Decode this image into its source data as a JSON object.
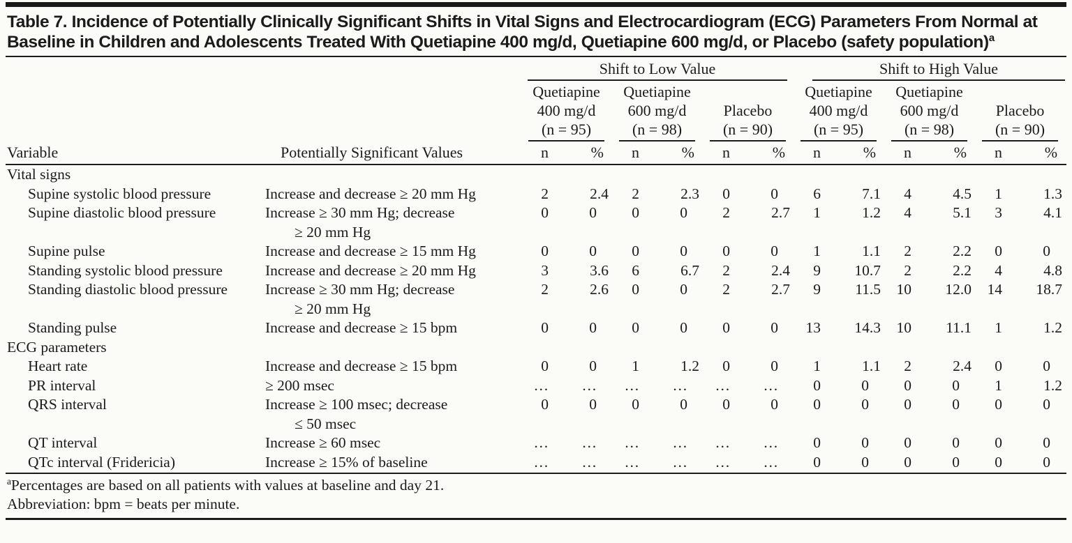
{
  "table": {
    "title": "Table 7. Incidence of Potentially Clinically Significant Shifts in Vital Signs and Electrocardiogram (ECG) Parameters From Normal at Baseline in Children and Adolescents Treated With Quetiapine 400 mg/d, Quetiapine 600 mg/d, or Placebo (safety population)",
    "title_sup": "a",
    "spanners": [
      "Shift to Low Value",
      "Shift to High Value"
    ],
    "groups": [
      {
        "lines": [
          "Quetiapine",
          "400 mg/d",
          "(n = 95)"
        ]
      },
      {
        "lines": [
          "Quetiapine",
          "600 mg/d",
          "(n = 98)"
        ]
      },
      {
        "lines": [
          "Placebo",
          "(n = 90)"
        ]
      },
      {
        "lines": [
          "Quetiapine",
          "400 mg/d",
          "(n = 95)"
        ]
      },
      {
        "lines": [
          "Quetiapine",
          "600 mg/d",
          "(n = 98)"
        ]
      },
      {
        "lines": [
          "Placebo",
          "(n = 90)"
        ]
      }
    ],
    "col_headers": {
      "variable": "Variable",
      "psv": "Potentially Significant Values",
      "n": "n",
      "pct": "%"
    },
    "rows": [
      {
        "type": "section",
        "label": "Vital signs"
      },
      {
        "type": "data",
        "variable": "Supine systolic blood pressure",
        "psv": "Increase and decrease ≥ 20 mm Hg",
        "psv2": "",
        "v": [
          "2",
          "2.4",
          "2",
          "2.3",
          "0",
          "0",
          "6",
          "7.1",
          "4",
          "4.5",
          "1",
          "1.3"
        ]
      },
      {
        "type": "data",
        "variable": "Supine diastolic blood pressure",
        "psv": "Increase ≥ 30 mm Hg; decrease",
        "psv2": "≥ 20 mm Hg",
        "v": [
          "0",
          "0",
          "0",
          "0",
          "2",
          "2.7",
          "1",
          "1.2",
          "4",
          "5.1",
          "3",
          "4.1"
        ]
      },
      {
        "type": "data",
        "variable": "Supine pulse",
        "psv": "Increase and decrease ≥ 15 mm Hg",
        "psv2": "",
        "v": [
          "0",
          "0",
          "0",
          "0",
          "0",
          "0",
          "1",
          "1.1",
          "2",
          "2.2",
          "0",
          "0"
        ]
      },
      {
        "type": "data",
        "variable": "Standing systolic blood pressure",
        "psv": "Increase and decrease ≥ 20 mm Hg",
        "psv2": "",
        "v": [
          "3",
          "3.6",
          "6",
          "6.7",
          "2",
          "2.4",
          "9",
          "10.7",
          "2",
          "2.2",
          "4",
          "4.8"
        ]
      },
      {
        "type": "data",
        "variable": "Standing diastolic blood pressure",
        "psv": "Increase ≥ 30 mm Hg; decrease",
        "psv2": "≥ 20 mm Hg",
        "v": [
          "2",
          "2.6",
          "0",
          "0",
          "2",
          "2.7",
          "9",
          "11.5",
          "10",
          "12.0",
          "14",
          "18.7"
        ]
      },
      {
        "type": "data",
        "variable": "Standing pulse",
        "psv": "Increase and decrease ≥ 15 bpm",
        "psv2": "",
        "v": [
          "0",
          "0",
          "0",
          "0",
          "0",
          "0",
          "13",
          "14.3",
          "10",
          "11.1",
          "1",
          "1.2"
        ]
      },
      {
        "type": "section",
        "label": "ECG parameters"
      },
      {
        "type": "data",
        "variable": "Heart rate",
        "psv": "Increase and decrease ≥ 15 bpm",
        "psv2": "",
        "v": [
          "0",
          "0",
          "1",
          "1.2",
          "0",
          "0",
          "1",
          "1.1",
          "2",
          "2.4",
          "0",
          "0"
        ]
      },
      {
        "type": "data",
        "variable": "PR interval",
        "psv": "≥ 200 msec",
        "psv2": "",
        "v": [
          "…",
          "…",
          "…",
          "…",
          "…",
          "…",
          "0",
          "0",
          "0",
          "0",
          "1",
          "1.2"
        ]
      },
      {
        "type": "data",
        "variable": "QRS interval",
        "psv": "Increase ≥ 100 msec; decrease",
        "psv2": "≤ 50 msec",
        "v": [
          "0",
          "0",
          "0",
          "0",
          "0",
          "0",
          "0",
          "0",
          "0",
          "0",
          "0",
          "0"
        ]
      },
      {
        "type": "data",
        "variable": "QT interval",
        "psv": "Increase ≥ 60 msec",
        "psv2": "",
        "v": [
          "…",
          "…",
          "…",
          "…",
          "…",
          "…",
          "0",
          "0",
          "0",
          "0",
          "0",
          "0"
        ]
      },
      {
        "type": "data",
        "variable": "QTc interval (Fridericia)",
        "psv": "Increase ≥ 15% of baseline",
        "psv2": "",
        "v": [
          "…",
          "…",
          "…",
          "…",
          "…",
          "…",
          "0",
          "0",
          "0",
          "0",
          "0",
          "0"
        ]
      }
    ],
    "footnotes": [
      {
        "sup": "a",
        "text": "Percentages are based on all patients with values at baseline and day 21."
      },
      {
        "sup": "",
        "text": "Abbreviation: bpm = beats per minute."
      }
    ]
  }
}
